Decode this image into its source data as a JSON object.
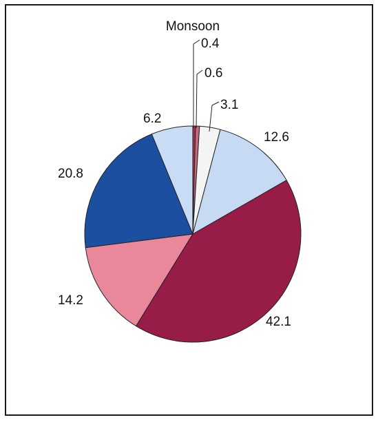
{
  "chart_data": {
    "type": "pie",
    "title": "Monsoon",
    "slices": [
      {
        "label": "0.4",
        "value": 0.4,
        "color": "#b0304a"
      },
      {
        "label": "0.6",
        "value": 0.6,
        "color": "#c46a80"
      },
      {
        "label": "3.1",
        "value": 3.1,
        "color": "#f4f4f4"
      },
      {
        "label": "12.6",
        "value": 12.6,
        "color": "#c6daf4"
      },
      {
        "label": "42.1",
        "value": 42.1,
        "color": "#981c48"
      },
      {
        "label": "14.2",
        "value": 14.2,
        "color": "#e8889a"
      },
      {
        "label": "20.8",
        "value": 20.8,
        "color": "#1c4fa0"
      },
      {
        "label": "6.2",
        "value": 6.2,
        "color": "#c9dcf5"
      }
    ],
    "start_angle_deg": 0,
    "direction": "clockwise",
    "legend": "none"
  }
}
